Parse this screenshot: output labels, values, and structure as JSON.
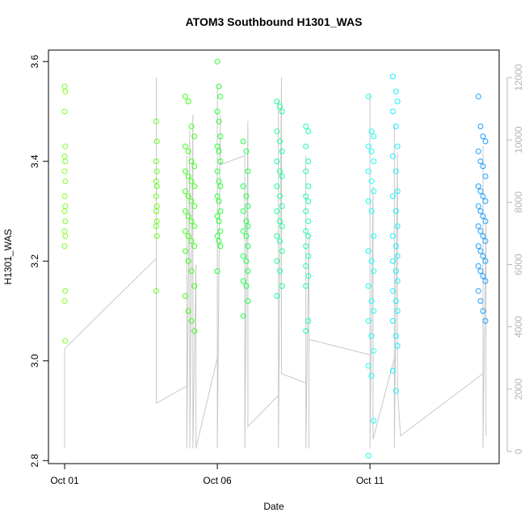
{
  "chart_data": {
    "type": "scatter",
    "title": "ATOM3 Southbound H1301_WAS",
    "xlabel": "Date",
    "ylabel": "H1301_WAS",
    "xlim": [
      -0.53,
      14.23
    ],
    "xticks": [
      {
        "value": 0,
        "label": "Oct 01"
      },
      {
        "value": 5,
        "label": "Oct 06"
      },
      {
        "value": 10,
        "label": "Oct 11"
      }
    ],
    "ylim": [
      2.794,
      3.623
    ],
    "yticks": [
      2.8,
      {
        "value": 3,
        "label": "3.0"
      },
      3.2,
      3.4,
      3.6
    ],
    "y2lim": [
      -389,
      12881
    ],
    "y2ticks": [
      0,
      2000,
      4000,
      6000,
      8000,
      10000,
      12000
    ],
    "series": [
      {
        "color": "#80ff26",
        "x": [
          0,
          0.02,
          0,
          0.02,
          0,
          0.02,
          0,
          0.02,
          0,
          0.02,
          0,
          0.02,
          0,
          0.02,
          0,
          0.02,
          0,
          0.02
        ],
        "values": [
          3.55,
          3.54,
          3.5,
          3.43,
          3.41,
          3.4,
          3.38,
          3.36,
          3.33,
          3.31,
          3.3,
          3.28,
          3.26,
          3.25,
          3.23,
          3.14,
          3.12,
          3.04
        ]
      },
      {
        "color": "#66ff1a",
        "x": [
          3,
          3.02,
          3,
          3.02,
          3,
          3.02,
          3,
          3.02,
          3,
          3.02,
          3,
          3.02,
          3
        ],
        "values": [
          3.48,
          3.44,
          3.4,
          3.38,
          3.36,
          3.35,
          3.33,
          3.31,
          3.3,
          3.28,
          3.27,
          3.25,
          3.14
        ]
      },
      {
        "color": "#40ff1a",
        "x": [
          3.95,
          4.05,
          4.15,
          4.25,
          3.95,
          4.05,
          4.15,
          4.25,
          3.95,
          4.05,
          4.15,
          4.25,
          3.95,
          4.05,
          4.15,
          4.25,
          3.95,
          4.05,
          4.15,
          4.25,
          3.95,
          4.05,
          4.15,
          4.25,
          3.95,
          4.05,
          4.15,
          4.25,
          3.95,
          4.05,
          4.15,
          4.25
        ],
        "values": [
          3.53,
          3.52,
          3.47,
          3.45,
          3.43,
          3.42,
          3.4,
          3.39,
          3.38,
          3.37,
          3.36,
          3.35,
          3.34,
          3.33,
          3.32,
          3.31,
          3.3,
          3.29,
          3.28,
          3.27,
          3.26,
          3.25,
          3.24,
          3.23,
          3.22,
          3.2,
          3.18,
          3.15,
          3.13,
          3.1,
          3.08,
          3.06
        ]
      },
      {
        "color": "#26ff33",
        "x": [
          5,
          5.05,
          5.1,
          5,
          5.05,
          5.1,
          5,
          5.05,
          5.1,
          5,
          5.05,
          5.1,
          5,
          5.05,
          5.1,
          5,
          5.05,
          5.1,
          5,
          5.05,
          5.1,
          5
        ],
        "values": [
          3.6,
          3.55,
          3.53,
          3.5,
          3.48,
          3.45,
          3.43,
          3.42,
          3.4,
          3.38,
          3.36,
          3.35,
          3.33,
          3.32,
          3.3,
          3.29,
          3.28,
          3.26,
          3.25,
          3.24,
          3.23,
          3.18
        ]
      },
      {
        "color": "#1aff4d",
        "x": [
          5.85,
          5.95,
          6,
          5.85,
          5.95,
          6,
          5.85,
          5.95,
          6,
          5.85,
          5.95,
          6,
          5.85,
          5.95,
          6,
          5.85,
          5.95,
          6,
          5.85
        ],
        "values": [
          3.44,
          3.42,
          3.38,
          3.35,
          3.33,
          3.31,
          3.3,
          3.28,
          3.27,
          3.26,
          3.25,
          3.23,
          3.21,
          3.2,
          3.18,
          3.16,
          3.15,
          3.12,
          3.09
        ]
      },
      {
        "color": "#1aff99",
        "x": [
          6.95,
          7.05,
          7.12,
          6.95,
          7.05,
          7.12,
          6.95,
          7.05,
          7.12,
          6.95,
          7.05,
          7.12,
          6.95,
          7.05,
          7.12,
          6.95,
          7.05,
          7.12,
          6.95,
          7.05,
          7.12,
          6.95
        ],
        "values": [
          3.52,
          3.51,
          3.5,
          3.46,
          3.44,
          3.42,
          3.4,
          3.38,
          3.37,
          3.35,
          3.33,
          3.31,
          3.3,
          3.28,
          3.27,
          3.25,
          3.24,
          3.22,
          3.2,
          3.18,
          3.15,
          3.13
        ]
      },
      {
        "color": "#1affaa",
        "x": [
          7.9,
          7.98,
          7.9,
          7.98,
          7.9,
          7.98,
          7.9,
          7.98,
          7.9,
          7.98,
          7.9,
          7.98,
          7.9,
          7.98,
          7.9,
          7.98,
          7.9,
          7.98,
          7.9
        ],
        "values": [
          3.47,
          3.46,
          3.43,
          3.4,
          3.38,
          3.35,
          3.33,
          3.32,
          3.3,
          3.28,
          3.26,
          3.25,
          3.23,
          3.21,
          3.19,
          3.17,
          3.15,
          3.08,
          3.06
        ]
      },
      {
        "color": "#1affee",
        "x": [
          9.95,
          10.05,
          10.12,
          9.95,
          10.05,
          10.12,
          9.95,
          10.05,
          10.12,
          9.95,
          10.05,
          10.12,
          9.95,
          10.05,
          10.12,
          9.95,
          10.05,
          10.12,
          9.95,
          10.05,
          10.12,
          9.95,
          10.05,
          10.12,
          9.95
        ],
        "values": [
          3.53,
          3.46,
          3.45,
          3.43,
          3.42,
          3.4,
          3.38,
          3.36,
          3.34,
          3.32,
          3.3,
          3.25,
          3.22,
          3.2,
          3.18,
          3.15,
          3.12,
          3.1,
          3.08,
          3.05,
          3.02,
          2.99,
          2.97,
          2.88,
          2.81
        ]
      },
      {
        "color": "#1aeeff",
        "x": [
          10.75,
          10.85,
          10.9,
          10.75,
          10.85,
          10.9,
          10.75,
          10.85,
          10.9,
          10.75,
          10.85,
          10.9,
          10.75,
          10.85,
          10.9,
          10.75,
          10.85,
          10.9,
          10.75,
          10.85,
          10.9,
          10.75,
          10.85,
          10.9,
          10.75,
          10.85
        ],
        "values": [
          3.57,
          3.54,
          3.52,
          3.5,
          3.47,
          3.43,
          3.41,
          3.38,
          3.34,
          3.33,
          3.3,
          3.27,
          3.25,
          3.23,
          3.21,
          3.2,
          3.18,
          3.16,
          3.14,
          3.12,
          3.1,
          3.08,
          3.05,
          3.03,
          2.98,
          2.94
        ]
      },
      {
        "color": "#1aa0ff",
        "x": [
          13.55,
          13.62,
          13.7,
          13.78,
          13.55,
          13.62,
          13.7,
          13.78,
          13.55,
          13.62,
          13.7,
          13.78,
          13.55,
          13.62,
          13.7,
          13.78,
          13.55,
          13.62,
          13.7,
          13.78,
          13.55,
          13.62,
          13.7,
          13.78,
          13.55,
          13.62,
          13.7,
          13.78,
          13.55,
          13.62,
          13.7,
          13.78
        ],
        "values": [
          3.53,
          3.47,
          3.45,
          3.44,
          3.42,
          3.4,
          3.39,
          3.37,
          3.35,
          3.34,
          3.33,
          3.32,
          3.31,
          3.3,
          3.29,
          3.28,
          3.27,
          3.26,
          3.25,
          3.24,
          3.23,
          3.22,
          3.21,
          3.2,
          3.19,
          3.18,
          3.17,
          3.16,
          3.14,
          3.12,
          3.1,
          3.08
        ]
      },
      {
        "color": "#c8c8c8",
        "axis": "y2",
        "x": [
          0,
          0,
          3,
          3,
          3,
          4,
          4,
          4,
          4.1,
          4.1,
          4.2,
          4.2,
          4.3,
          4.3,
          5,
          5,
          5,
          5.1,
          5.1,
          5.9,
          5.9,
          5.9,
          6,
          6,
          7,
          7,
          7,
          7.1,
          7.1,
          7.9,
          7.9,
          7.9,
          8,
          8,
          8,
          10,
          10,
          10,
          10.1,
          10.1,
          10.8,
          10.8,
          10.8,
          10.9,
          10.9,
          11,
          13.7,
          13.7,
          13.7,
          13.8,
          13.8
        ],
        "values": [
          100,
          3300,
          6200,
          12000,
          1550,
          2100,
          9500,
          100,
          10300,
          100,
          10800,
          100,
          6000,
          100,
          3000,
          11700,
          100,
          10800,
          9200,
          9500,
          3400,
          100,
          10600,
          800,
          1800,
          11300,
          100,
          12000,
          2500,
          2200,
          9500,
          100,
          7000,
          100,
          3600,
          3100,
          11500,
          100,
          8500,
          400,
          3000,
          10500,
          100,
          9600,
          2000,
          500,
          2500,
          9800,
          100,
          7500,
          500
        ]
      }
    ]
  }
}
